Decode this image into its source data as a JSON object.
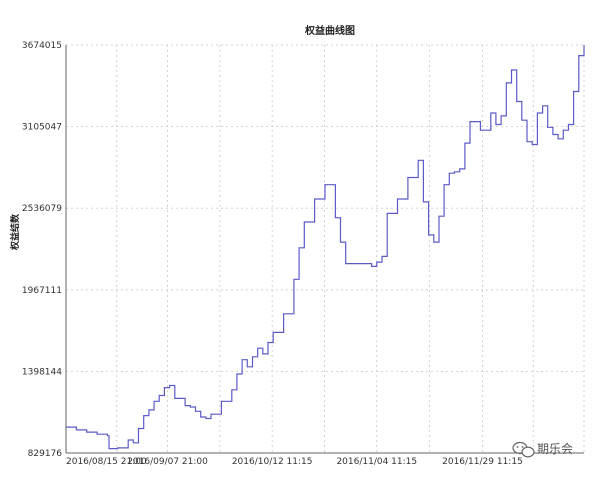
{
  "chart_data": {
    "type": "line",
    "title": "权益曲线图",
    "xlabel": "",
    "ylabel": "权益结数",
    "y_ticks": [
      829176,
      1398144,
      1967111,
      2536079,
      3105047,
      3674015
    ],
    "ylim": [
      829176,
      3674015
    ],
    "x_tick_labels": [
      "2016/08/15 21:00",
      "2016/09/07 21:00",
      "2016/10/12 11:15",
      "2016/11/04 11:15",
      "2016/11/29 11:15"
    ],
    "x_tick_positions": [
      0.0,
      0.196,
      0.398,
      0.6,
      0.804
    ],
    "grid": true,
    "legend": "none",
    "line_color": "#5b5bc8",
    "series": [
      {
        "x": [
          0.0,
          0.02,
          0.04,
          0.06,
          0.08,
          0.083,
          0.1,
          0.12,
          0.13,
          0.14,
          0.15,
          0.16,
          0.17,
          0.18,
          0.19,
          0.2,
          0.21,
          0.23,
          0.24,
          0.25,
          0.26,
          0.27,
          0.28,
          0.3,
          0.32,
          0.33,
          0.34,
          0.35,
          0.36,
          0.37,
          0.38,
          0.39,
          0.4,
          0.42,
          0.44,
          0.45,
          0.46,
          0.48,
          0.5,
          0.52,
          0.53,
          0.54,
          0.56,
          0.58,
          0.59,
          0.6,
          0.61,
          0.62,
          0.64,
          0.66,
          0.68,
          0.69,
          0.7,
          0.71,
          0.72,
          0.73,
          0.74,
          0.75,
          0.76,
          0.77,
          0.78,
          0.8,
          0.82,
          0.83,
          0.84,
          0.85,
          0.86,
          0.87,
          0.88,
          0.89,
          0.9,
          0.91,
          0.92,
          0.93,
          0.94,
          0.95,
          0.96,
          0.97,
          0.98,
          0.99,
          1.0
        ],
        "y": [
          1010000,
          990000,
          975000,
          960000,
          950000,
          860000,
          865000,
          920000,
          900000,
          1000000,
          1090000,
          1130000,
          1190000,
          1230000,
          1285000,
          1300000,
          1210000,
          1160000,
          1150000,
          1120000,
          1080000,
          1070000,
          1100000,
          1190000,
          1270000,
          1380000,
          1480000,
          1430000,
          1500000,
          1560000,
          1520000,
          1600000,
          1670000,
          1800000,
          2040000,
          2260000,
          2440000,
          2600000,
          2700000,
          2470000,
          2300000,
          2150000,
          2150000,
          2150000,
          2130000,
          2160000,
          2200000,
          2500000,
          2600000,
          2750000,
          2870000,
          2580000,
          2350000,
          2300000,
          2480000,
          2700000,
          2780000,
          2790000,
          2810000,
          2990000,
          3140000,
          3080000,
          3200000,
          3120000,
          3180000,
          3410000,
          3500000,
          3280000,
          3150000,
          3000000,
          2980000,
          3200000,
          3250000,
          3100000,
          3050000,
          3020000,
          3080000,
          3120000,
          3350000,
          3600000,
          3674015
        ]
      }
    ]
  },
  "watermark": {
    "text": "期乐会",
    "icon": "wechat-logo-icon"
  }
}
